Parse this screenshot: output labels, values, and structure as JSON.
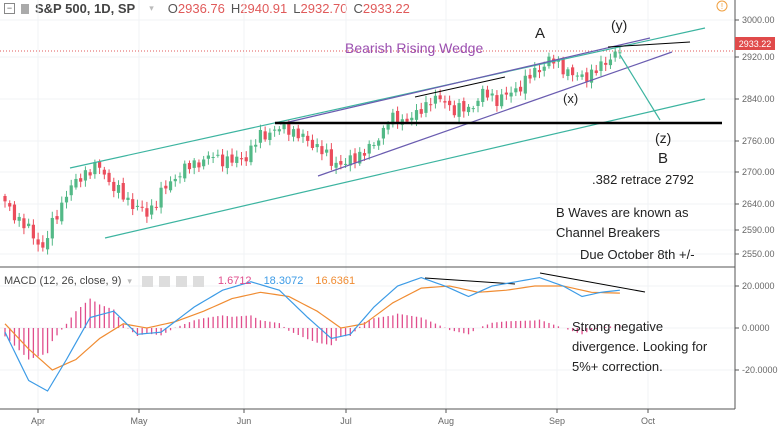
{
  "header": {
    "symbol": "S&P 500, 1D, SP",
    "open_label": "O",
    "open": "2936.76",
    "high_label": "H",
    "high": "2940.91",
    "low_label": "L",
    "low": "2932.70",
    "close_label": "C",
    "close": "2933.22"
  },
  "macd_header": {
    "title": "MACD (12, 26, close, 9)",
    "hist": "1.6712",
    "macd": "18.3072",
    "signal": "16.6361"
  },
  "price_axis": {
    "ticks": [
      "3000.00",
      "2920.00",
      "2840.00",
      "2760.00",
      "2700.00",
      "2640.00",
      "2590.00",
      "2550.00"
    ],
    "last_price": "2933.22"
  },
  "macd_axis": {
    "ticks": [
      "20.0000",
      "0.0000",
      "-20.0000"
    ]
  },
  "time_axis": {
    "months": [
      "Apr",
      "May",
      "Jun",
      "Jul",
      "Aug",
      "Sep",
      "Oct"
    ]
  },
  "annotations": {
    "wedge": "Bearish Rising Wedge",
    "a": "A",
    "y": "(y)",
    "x": "(x)",
    "z": "(z)",
    "b": "B",
    "retrace": ".382 retrace 2792",
    "bwaves1": "B Waves are known as",
    "bwaves2": "Channel Breakers",
    "due": "Due October 8th +/-",
    "div1": "Strong negative",
    "div2": "divergence. Looking for",
    "div3": "5%+ correction."
  },
  "colors": {
    "up": "#53b987",
    "down": "#eb4d5c",
    "macd": "#3c9be6",
    "signal": "#f08c32",
    "hist": "#e04d8c",
    "channel": "#3cb4a0",
    "wedge": "#6a5cb0"
  },
  "chart_data": {
    "type": "candlestick",
    "series_close_waypoints": [
      [
        0,
        2640
      ],
      [
        4,
        2600
      ],
      [
        8,
        2560
      ],
      [
        10,
        2600
      ],
      [
        13,
        2660
      ],
      [
        17,
        2700
      ],
      [
        20,
        2710
      ],
      [
        23,
        2670
      ],
      [
        27,
        2640
      ],
      [
        30,
        2620
      ],
      [
        33,
        2660
      ],
      [
        37,
        2700
      ],
      [
        41,
        2720
      ],
      [
        44,
        2730
      ],
      [
        48,
        2720
      ],
      [
        51,
        2730
      ],
      [
        54,
        2770
      ],
      [
        57,
        2780
      ],
      [
        60,
        2785
      ],
      [
        62,
        2770
      ],
      [
        66,
        2750
      ],
      [
        69,
        2720
      ],
      [
        72,
        2715
      ],
      [
        75,
        2735
      ],
      [
        78,
        2750
      ],
      [
        81,
        2800
      ],
      [
        84,
        2800
      ],
      [
        87,
        2808
      ],
      [
        90,
        2840
      ],
      [
        93,
        2835
      ],
      [
        95,
        2820
      ],
      [
        98,
        2820
      ],
      [
        101,
        2850
      ],
      [
        104,
        2840
      ],
      [
        107,
        2850
      ],
      [
        110,
        2875
      ],
      [
        113,
        2898
      ],
      [
        115,
        2915
      ],
      [
        118,
        2900
      ],
      [
        121,
        2880
      ],
      [
        123,
        2885
      ],
      [
        126,
        2900
      ],
      [
        129,
        2930
      ],
      [
        130,
        2933
      ]
    ],
    "macd_waypoints": [
      [
        0,
        -2
      ],
      [
        5,
        -25
      ],
      [
        9,
        -30
      ],
      [
        13,
        -15
      ],
      [
        18,
        5
      ],
      [
        23,
        8
      ],
      [
        28,
        -3
      ],
      [
        33,
        -2
      ],
      [
        40,
        10
      ],
      [
        46,
        18
      ],
      [
        52,
        22
      ],
      [
        58,
        18
      ],
      [
        64,
        5
      ],
      [
        69,
        -5
      ],
      [
        73,
        -3
      ],
      [
        78,
        10
      ],
      [
        83,
        20
      ],
      [
        88,
        24
      ],
      [
        93,
        20
      ],
      [
        98,
        15
      ],
      [
        103,
        20
      ],
      [
        108,
        22
      ],
      [
        113,
        24
      ],
      [
        118,
        20
      ],
      [
        122,
        15
      ],
      [
        126,
        17
      ],
      [
        130,
        18
      ]
    ],
    "signal_waypoints": [
      [
        0,
        2
      ],
      [
        5,
        -10
      ],
      [
        10,
        -20
      ],
      [
        15,
        -15
      ],
      [
        20,
        -5
      ],
      [
        25,
        2
      ],
      [
        30,
        0
      ],
      [
        36,
        3
      ],
      [
        42,
        8
      ],
      [
        48,
        14
      ],
      [
        54,
        17
      ],
      [
        60,
        15
      ],
      [
        66,
        8
      ],
      [
        71,
        0
      ],
      [
        76,
        2
      ],
      [
        82,
        12
      ],
      [
        88,
        19
      ],
      [
        94,
        20
      ],
      [
        100,
        17
      ],
      [
        106,
        18
      ],
      [
        112,
        20
      ],
      [
        118,
        20
      ],
      [
        124,
        17
      ],
      [
        130,
        16.6
      ]
    ],
    "xlim_months": [
      "Apr",
      "Oct"
    ],
    "ylim": [
      2530,
      3020
    ]
  }
}
